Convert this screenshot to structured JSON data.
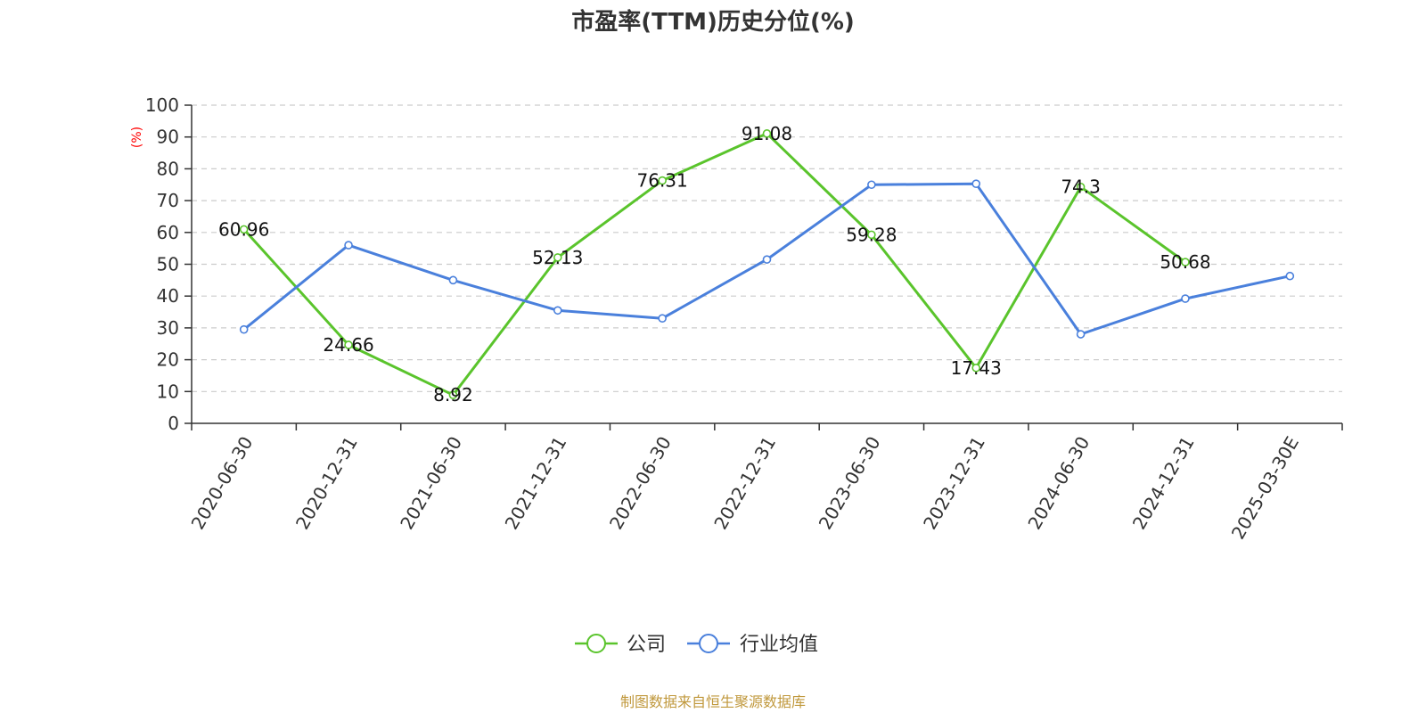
{
  "chart_data": {
    "type": "line",
    "title": "市盈率(TTM)历史分位(%)",
    "ylabel": "(%)",
    "ylim": [
      0,
      100
    ],
    "yticks": [
      0,
      10,
      20,
      30,
      40,
      50,
      60,
      70,
      80,
      90,
      100
    ],
    "grid": "dashed-horizontal",
    "legend_position": "bottom-center",
    "categories": [
      "2020-06-30",
      "2020-12-31",
      "2021-06-30",
      "2021-12-31",
      "2022-06-30",
      "2022-12-31",
      "2023-06-30",
      "2023-12-31",
      "2024-06-30",
      "2024-12-31",
      "2025-03-30E"
    ],
    "series": [
      {
        "name": "公司",
        "color": "#5ac42c",
        "values": [
          60.96,
          24.66,
          8.92,
          52.13,
          76.31,
          91.08,
          59.28,
          17.43,
          74.3,
          50.68,
          null
        ],
        "labels": [
          "60.96",
          "24.66",
          "8.92",
          "52.13",
          "76.31",
          "91.08",
          "59.28",
          "17.43",
          "74.3",
          "50.68",
          ""
        ]
      },
      {
        "name": "行业均值",
        "color": "#4a80dc",
        "values": [
          29.5,
          56,
          45,
          35.5,
          33,
          51.5,
          75,
          75.3,
          28,
          39.2,
          46.3
        ]
      }
    ],
    "source": "制图数据来自恒生聚源数据库"
  }
}
